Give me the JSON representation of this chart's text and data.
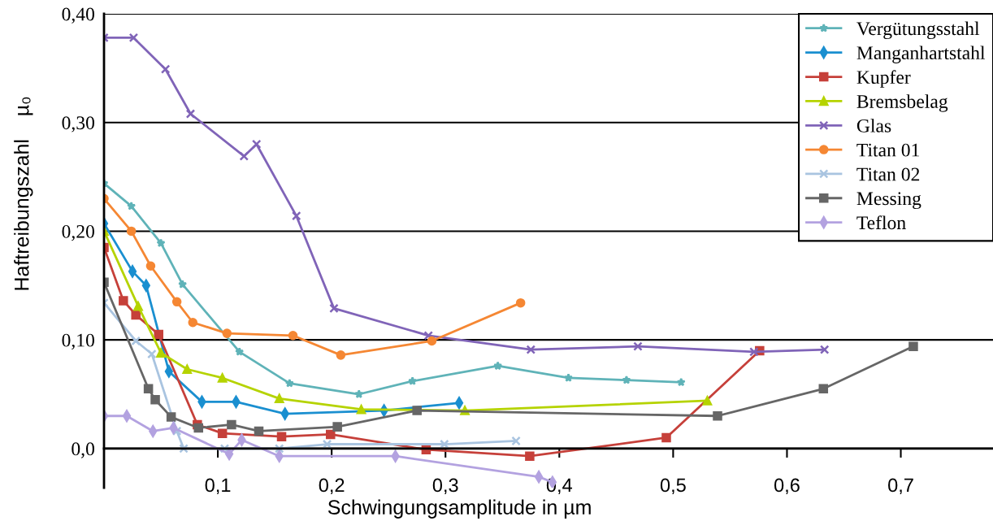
{
  "chart_data": {
    "type": "line",
    "xlabel": "Schwingungsamplitude in µm",
    "ylabel": "Haftreibungszahl    µ₀",
    "xlim": [
      0,
      0.781
    ],
    "ylim": [
      -0.036,
      0.4
    ],
    "xticks": [
      {
        "value": 0.1,
        "label": "0,1"
      },
      {
        "value": 0.2,
        "label": "0,2"
      },
      {
        "value": 0.3,
        "label": "0,3"
      },
      {
        "value": 0.4,
        "label": "0,4"
      },
      {
        "value": 0.5,
        "label": "0,5"
      },
      {
        "value": 0.6,
        "label": "0,6"
      },
      {
        "value": 0.7,
        "label": "0,7"
      }
    ],
    "yticks": [
      {
        "value": 0,
        "label": "0,0"
      },
      {
        "value": 0.1,
        "label": "0,10"
      },
      {
        "value": 0.2,
        "label": "0,20"
      },
      {
        "value": 0.3,
        "label": "0,30"
      },
      {
        "value": 0.4,
        "label": "0,40"
      }
    ],
    "grid": "y",
    "legend": "top right",
    "line_style": "solid",
    "series": [
      {
        "name": "Vergütungsstahl",
        "color": "#5fb3b8",
        "marker": "star",
        "x": [
          0,
          0.024,
          0.05,
          0.069,
          0.119,
          0.163,
          0.224,
          0.271,
          0.346,
          0.408,
          0.459,
          0.507
        ],
        "values": [
          0.244,
          0.223,
          0.189,
          0.151,
          0.089,
          0.06,
          0.05,
          0.062,
          0.076,
          0.065,
          0.063,
          0.061
        ]
      },
      {
        "name": "Manganhartstahl",
        "color": "#1a8fd0",
        "marker": "diamond",
        "x": [
          0,
          0.025,
          0.037,
          0.057,
          0.086,
          0.116,
          0.159,
          0.246,
          0.312
        ],
        "values": [
          0.207,
          0.163,
          0.15,
          0.071,
          0.043,
          0.043,
          0.032,
          0.035,
          0.042
        ]
      },
      {
        "name": "Kupfer",
        "color": "#c6403a",
        "marker": "square",
        "x": [
          0,
          0.017,
          0.028,
          0.048,
          0.082,
          0.104,
          0.156,
          0.199,
          0.283,
          0.374,
          0.494,
          0.576
        ],
        "values": [
          0.185,
          0.136,
          0.123,
          0.105,
          0.022,
          0.014,
          0.011,
          0.013,
          -0.001,
          -0.007,
          0.01,
          0.09
        ]
      },
      {
        "name": "Bremsbelag",
        "color": "#b5d300",
        "marker": "triangle",
        "x": [
          0,
          0.03,
          0.05,
          0.073,
          0.104,
          0.154,
          0.226,
          0.317,
          0.53
        ],
        "values": [
          0.2,
          0.131,
          0.088,
          0.073,
          0.065,
          0.046,
          0.036,
          0.035,
          0.044
        ]
      },
      {
        "name": "Glas",
        "color": "#8064b8",
        "marker": "cross",
        "x": [
          0,
          0.026,
          0.054,
          0.076,
          0.123,
          0.134,
          0.169,
          0.202,
          0.285,
          0.375,
          0.469,
          0.571,
          0.633
        ],
        "values": [
          0.378,
          0.378,
          0.349,
          0.308,
          0.269,
          0.28,
          0.214,
          0.129,
          0.104,
          0.091,
          0.094,
          0.089,
          0.091
        ]
      },
      {
        "name": "Titan 01",
        "color": "#f58733",
        "marker": "circle",
        "x": [
          0,
          0.024,
          0.041,
          0.064,
          0.078,
          0.108,
          0.166,
          0.208,
          0.288,
          0.366
        ],
        "values": [
          0.23,
          0.2,
          0.168,
          0.135,
          0.116,
          0.106,
          0.104,
          0.086,
          0.099,
          0.134
        ]
      },
      {
        "name": "Titan 02",
        "color": "#a9c4e0",
        "marker": "cross",
        "x": [
          0,
          0.028,
          0.042,
          0.064,
          0.07,
          0.106,
          0.154,
          0.196,
          0.299,
          0.362
        ],
        "values": [
          0.134,
          0.099,
          0.087,
          0.016,
          0.0,
          0.0,
          0.0,
          0.004,
          0.004,
          0.007
        ]
      },
      {
        "name": "Messing",
        "color": "#666666",
        "marker": "square",
        "x": [
          0,
          0.039,
          0.045,
          0.059,
          0.083,
          0.112,
          0.136,
          0.205,
          0.275,
          0.539,
          0.632,
          0.711
        ],
        "values": [
          0.153,
          0.055,
          0.045,
          0.029,
          0.019,
          0.022,
          0.016,
          0.02,
          0.035,
          0.03,
          0.055,
          0.094
        ]
      },
      {
        "name": "Teflon",
        "color": "#b3a2e0",
        "marker": "diamond",
        "x": [
          0,
          0.02,
          0.043,
          0.061,
          0.11,
          0.121,
          0.154,
          0.256,
          0.382,
          0.394
        ],
        "values": [
          0.03,
          0.03,
          0.016,
          0.019,
          -0.005,
          0.008,
          -0.007,
          -0.007,
          -0.026,
          -0.031
        ]
      }
    ]
  }
}
